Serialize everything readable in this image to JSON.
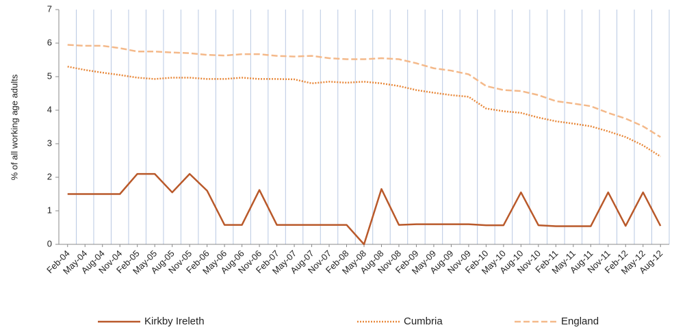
{
  "chart_data": {
    "type": "line",
    "y_label": "% of all working age adults",
    "categories": [
      "Feb-04",
      "May-04",
      "Aug-04",
      "Nov-04",
      "Feb-05",
      "May-05",
      "Aug-05",
      "Nov-05",
      "Feb-06",
      "May-06",
      "Aug-06",
      "Nov-06",
      "Feb-07",
      "May-07",
      "Aug-07",
      "Nov-07",
      "Feb-08",
      "May-08",
      "Aug-08",
      "Nov-08",
      "Feb-09",
      "May-09",
      "Aug-09",
      "Nov-09",
      "Feb-10",
      "May-10",
      "Aug-10",
      "Nov-10",
      "Feb-11",
      "May-11",
      "Aug-11",
      "Nov-11",
      "Feb-12",
      "May-12",
      "Aug-12"
    ],
    "series": [
      {
        "name": "Kirkby Ireleth",
        "color": "#b9592a",
        "style": "solid",
        "values": [
          1.5,
          1.5,
          1.5,
          1.5,
          2.1,
          2.1,
          1.55,
          2.1,
          1.6,
          0.58,
          0.58,
          1.62,
          0.58,
          0.58,
          0.58,
          0.58,
          0.58,
          0,
          1.65,
          0.58,
          0.6,
          0.6,
          0.6,
          0.6,
          0.57,
          0.57,
          1.55,
          0.57,
          0.54,
          0.54,
          0.54,
          1.55,
          0.55,
          1.55,
          0.55
        ]
      },
      {
        "name": "Cumbria",
        "color": "#e8883a",
        "style": "dotted",
        "values": [
          5.3,
          5.2,
          5.12,
          5.05,
          4.97,
          4.93,
          4.97,
          4.97,
          4.93,
          4.93,
          4.97,
          4.93,
          4.93,
          4.92,
          4.8,
          4.85,
          4.82,
          4.85,
          4.8,
          4.72,
          4.6,
          4.52,
          4.45,
          4.4,
          4.05,
          3.97,
          3.92,
          3.78,
          3.67,
          3.6,
          3.52,
          3.37,
          3.2,
          2.95,
          2.62
        ]
      },
      {
        "name": "England",
        "color": "#f4b98a",
        "style": "dashed",
        "values": [
          5.95,
          5.92,
          5.92,
          5.85,
          5.75,
          5.75,
          5.72,
          5.7,
          5.65,
          5.63,
          5.67,
          5.67,
          5.62,
          5.6,
          5.62,
          5.55,
          5.52,
          5.52,
          5.55,
          5.52,
          5.4,
          5.25,
          5.18,
          5.07,
          4.72,
          4.6,
          4.57,
          4.45,
          4.27,
          4.2,
          4.12,
          3.92,
          3.75,
          3.52,
          3.2
        ]
      }
    ],
    "ylim": [
      0,
      7
    ],
    "yticks": [
      0,
      1,
      2,
      3,
      4,
      5,
      6,
      7
    ],
    "grid": true,
    "grid_color": "#b8c8e2",
    "legend": "bottom"
  }
}
